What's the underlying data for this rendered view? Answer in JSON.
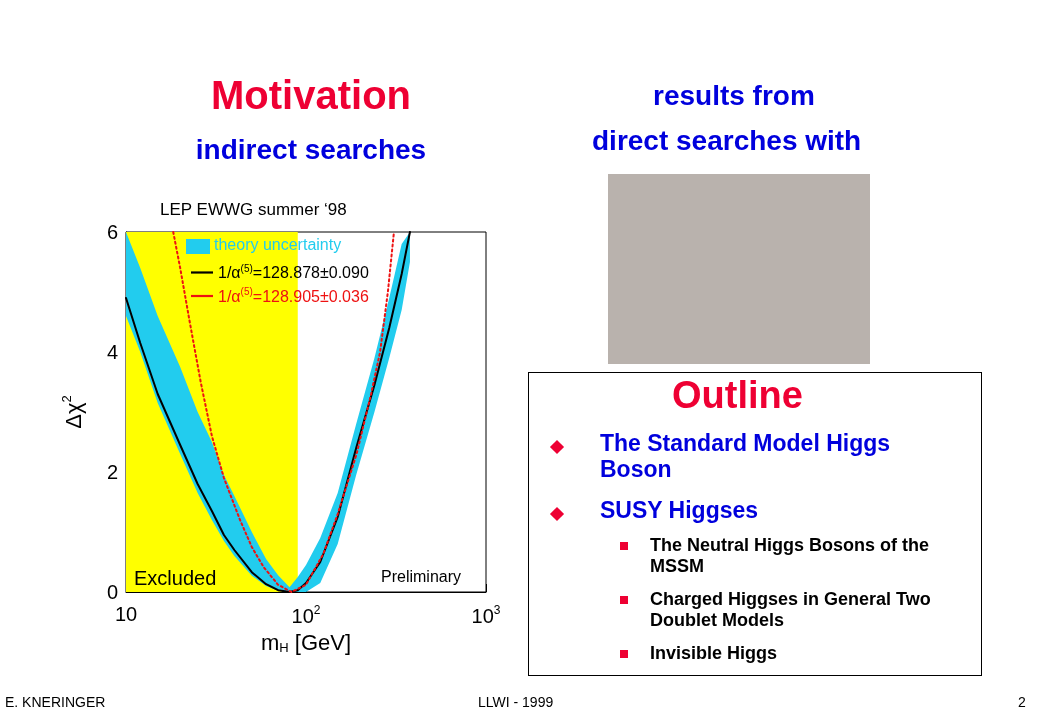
{
  "chart_data": {
    "type": "line",
    "title": "Motivation",
    "subtitle": "indirect searches",
    "xlabel": "m$_{H}$ [GeV]",
    "ylabel": "Δχ$^{2}$",
    "log": "x",
    "xlim": [
      10,
      1000
    ],
    "ylim": [
      0,
      6
    ],
    "xticks": [
      {
        "value": 10,
        "label": "10"
      },
      {
        "value": 100,
        "label": "10$^{2}$"
      },
      {
        "value": 1000,
        "label": "10$^{3}$"
      }
    ],
    "yticks": [
      0,
      {
        "value": 1,
        "label": null
      },
      2,
      {
        "value": 3,
        "label": null
      },
      4,
      {
        "value": 5,
        "label": null
      },
      6
    ],
    "grid": false,
    "legend": "top",
    "marker": "none",
    "bands": [
      {
        "axis": "x",
        "from": 10,
        "to": 90,
        "label": "Excluded",
        "color": "#ffff00"
      }
    ],
    "series": [
      {
        "name": "1/α$^{(5)}$=128.878±0.090",
        "type": "line",
        "color": "#000000",
        "line_style": "solid",
        "x": [
          10,
          12,
          15,
          20,
          25,
          30,
          35,
          40,
          50,
          60,
          70,
          81,
          90,
          100,
          120,
          150,
          190,
          240,
          290,
          340,
          378
        ],
        "values": [
          4.9,
          4.15,
          3.3,
          2.45,
          1.8,
          1.35,
          0.95,
          0.7,
          0.33,
          0.13,
          0.03,
          0,
          0.03,
          0.15,
          0.5,
          1.25,
          2.4,
          3.45,
          4.4,
          5.3,
          6
        ],
        "lower": [
          4.6,
          4.0,
          3.15,
          2.3,
          1.65,
          1.2,
          0.85,
          0.6,
          0.27,
          0.1,
          0.02,
          0,
          0,
          0,
          0.15,
          0.8,
          1.95,
          3.0,
          3.9,
          4.7,
          5.5
        ],
        "upper": [
          6,
          5.4,
          4.6,
          3.75,
          3.0,
          2.5,
          1.95,
          1.6,
          1.0,
          0.55,
          0.28,
          0.08,
          0.25,
          0.45,
          0.9,
          1.65,
          2.8,
          3.9,
          4.9,
          5.8,
          6
        ]
      },
      {
        "name": "1/α$^{(5)}$=128.905±0.036",
        "type": "line",
        "color": "#ee1111",
        "line_style": "dotted",
        "x": [
          18.3,
          20,
          22.6,
          26,
          30,
          35,
          43,
          50,
          58,
          70,
          83,
          100,
          125,
          150,
          191,
          230,
          258,
          285,
          308
        ],
        "values": [
          6,
          5.4,
          4.5,
          3.5,
          2.6,
          1.9,
          1.2,
          0.75,
          0.42,
          0.12,
          0,
          0.12,
          0.64,
          1.3,
          2.3,
          3.3,
          4.0,
          5.0,
          6
        ]
      }
    ],
    "annotations": [
      "LEP EWWG summer ‘98",
      "Preliminary",
      "results from",
      "direct searches with",
      "Outline",
      "The Standard Model Higgs Boson",
      "SUSY Higgses",
      "The Neutral Higgs Bosons of the MSSM",
      "Charged Higgses in General Two Doublet Models",
      "Invisible Higgs",
      "E. KNERINGER",
      "LLWI - 1999",
      "2",
      "theory uncertainty"
    ]
  }
}
